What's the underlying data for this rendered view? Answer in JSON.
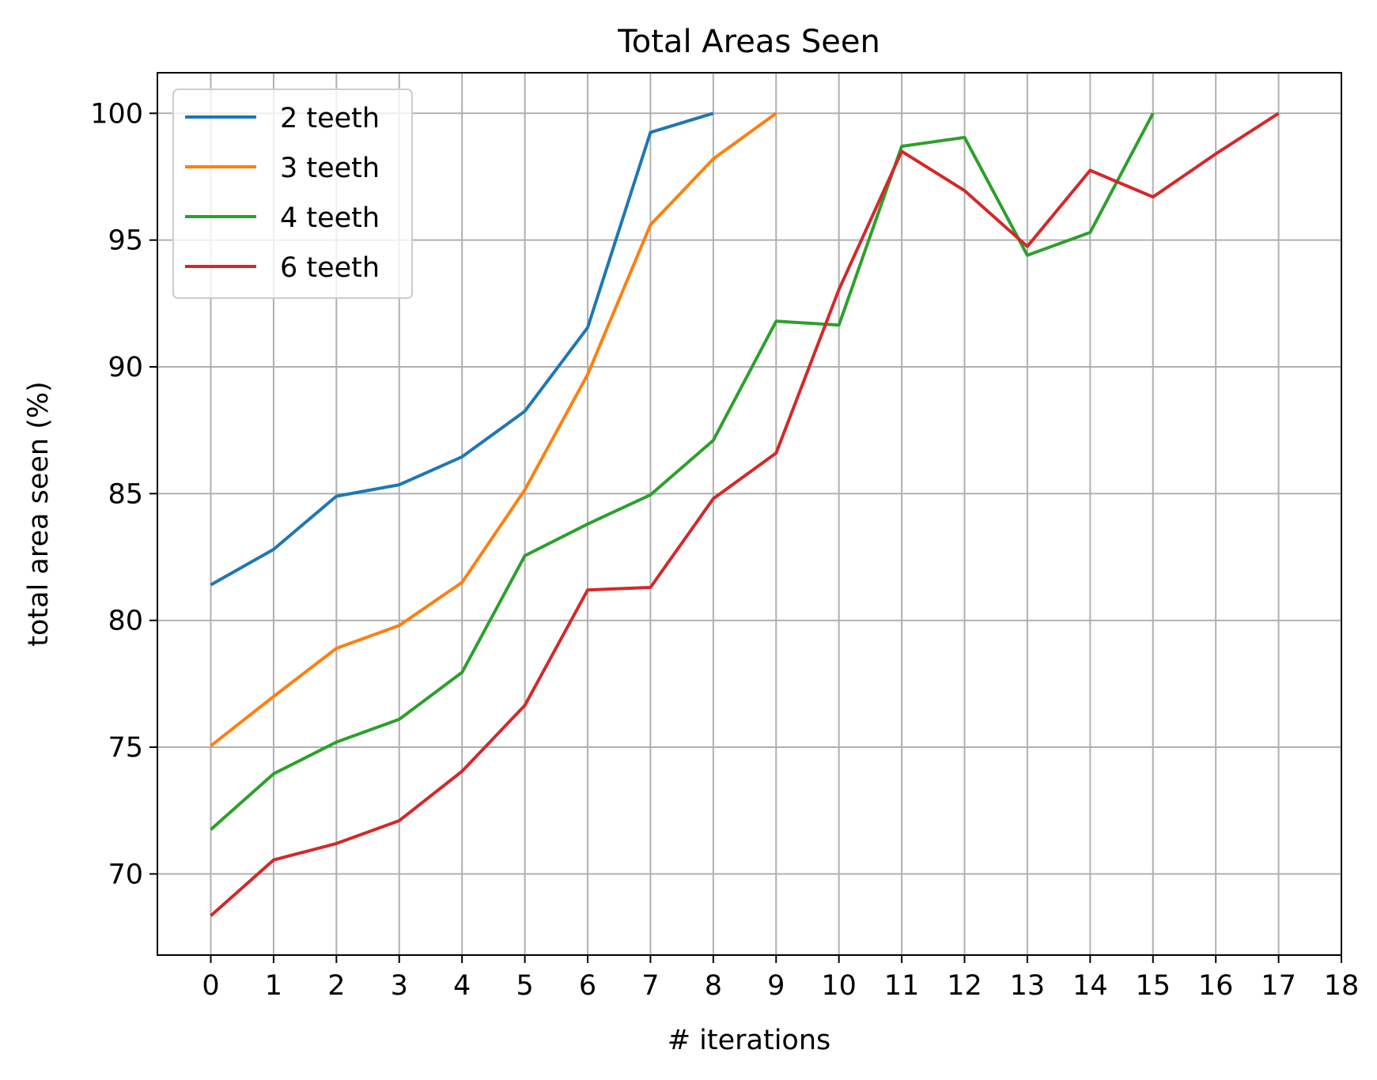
{
  "chart_data": {
    "type": "line",
    "title": "Total Areas Seen",
    "xlabel": "# iterations",
    "ylabel": "total area seen (%)",
    "xlim": [
      -0.85,
      18
    ],
    "ylim": [
      66.8,
      101.6
    ],
    "xticks": [
      0,
      1,
      2,
      3,
      4,
      5,
      6,
      7,
      8,
      9,
      10,
      11,
      12,
      13,
      14,
      15,
      16,
      17,
      18
    ],
    "yticks": [
      70,
      75,
      80,
      85,
      90,
      95,
      100
    ],
    "grid": true,
    "legend_position": "top-left",
    "series": [
      {
        "name": "2 teeth",
        "color": "#1f77b4",
        "x": [
          0,
          1,
          2,
          3,
          4,
          5,
          6,
          7,
          8
        ],
        "values": [
          81.4,
          82.8,
          84.9,
          85.35,
          86.45,
          88.25,
          91.55,
          99.25,
          100
        ]
      },
      {
        "name": "3 teeth",
        "color": "#ff7f0e",
        "x": [
          0,
          1,
          2,
          3,
          4,
          5,
          6,
          7,
          8,
          9
        ],
        "values": [
          75.05,
          77.0,
          78.9,
          79.8,
          81.5,
          85.15,
          89.7,
          95.6,
          98.2,
          100
        ]
      },
      {
        "name": "4 teeth",
        "color": "#2ca02c",
        "x": [
          0,
          1,
          2,
          3,
          4,
          5,
          6,
          7,
          8,
          9,
          10,
          11,
          12,
          13,
          14,
          15
        ],
        "values": [
          71.75,
          73.95,
          75.2,
          76.1,
          77.95,
          82.55,
          83.8,
          84.95,
          87.1,
          91.8,
          91.65,
          98.7,
          99.05,
          94.4,
          95.3,
          100
        ]
      },
      {
        "name": "6 teeth",
        "color": "#d62728",
        "x": [
          0,
          1,
          2,
          3,
          4,
          5,
          6,
          7,
          8,
          9,
          10,
          11,
          12,
          13,
          14,
          15,
          16,
          17
        ],
        "values": [
          68.35,
          70.55,
          71.2,
          72.1,
          74.05,
          76.65,
          81.2,
          81.3,
          84.8,
          86.6,
          93.05,
          98.5,
          96.95,
          94.75,
          97.75,
          96.7,
          98.4,
          100
        ]
      }
    ]
  }
}
